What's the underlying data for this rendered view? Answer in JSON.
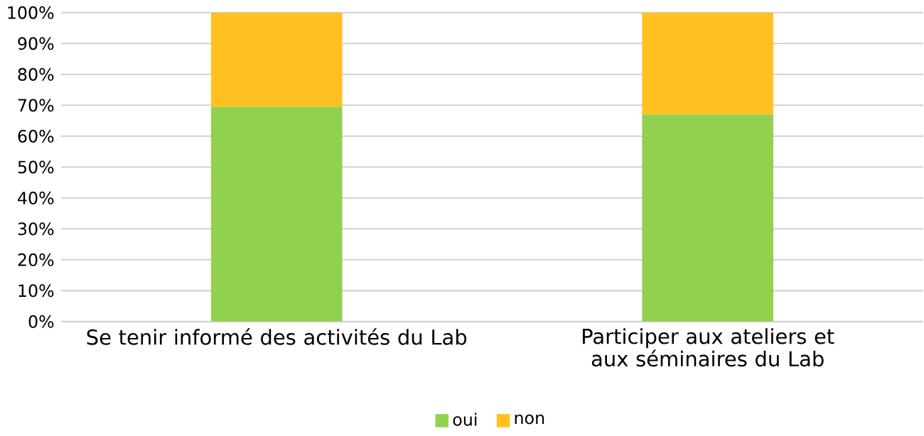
{
  "chart_data": {
    "type": "bar",
    "stacked": true,
    "categories": [
      "Se tenir informé des activités du Lab",
      "Participer aux ateliers et aux séminaires du Lab"
    ],
    "series": [
      {
        "name": "oui",
        "color": "#92d050",
        "values": [
          69.5,
          67
        ]
      },
      {
        "name": "non",
        "color": "#ffc020",
        "values": [
          30.5,
          33
        ]
      }
    ],
    "ylim": [
      0,
      100
    ],
    "yticks": [
      {
        "value": 0,
        "label": "0%"
      },
      {
        "value": 10,
        "label": "10%"
      },
      {
        "value": 20,
        "label": "20%"
      },
      {
        "value": 30,
        "label": "30%"
      },
      {
        "value": 40,
        "label": "40%"
      },
      {
        "value": 50,
        "label": "50%"
      },
      {
        "value": 60,
        "label": "60%"
      },
      {
        "value": 70,
        "label": "70%"
      },
      {
        "value": 80,
        "label": "80%"
      },
      {
        "value": 90,
        "label": "90%"
      },
      {
        "value": 100,
        "label": "100%"
      }
    ],
    "grid": "y",
    "legend": "bottom"
  }
}
